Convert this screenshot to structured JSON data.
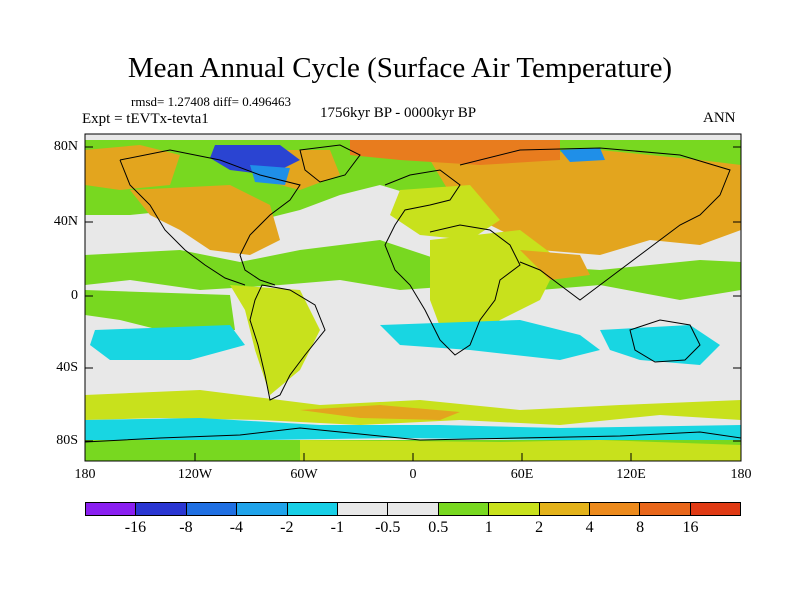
{
  "title": "Mean Annual Cycle (Surface Air Temperature)",
  "stats": "rmsd= 1.27408 diff= 0.496463",
  "experiment": "Expt = tEVTx-tevta1",
  "period": "1756kyr BP - 0000kyr BP",
  "season": "ANN",
  "y_axis_labels": [
    "80N",
    "40N",
    "0",
    "40S",
    "80S"
  ],
  "x_axis_labels": [
    "180",
    "120W",
    "60W",
    "0",
    "60E",
    "120E",
    "180"
  ],
  "colorbar": {
    "colors": [
      "#8a1ff0",
      "#2a36d2",
      "#1f6fe2",
      "#1fa3ea",
      "#18cfe6",
      "#e8e8e8",
      "#e8e8e8",
      "#78d820",
      "#c8e11c",
      "#e3b21a",
      "#ec8a1c",
      "#e8661a",
      "#e03a14"
    ],
    "labels": [
      "-16",
      "-8",
      "-4",
      "-2",
      "-1",
      "-0.5",
      "0.5",
      "1",
      "2",
      "4",
      "8",
      "16"
    ]
  },
  "map_colors": {
    "neutral": "#e8e8e8",
    "light_green": "#b9e34a",
    "green": "#78d820",
    "yellow_green": "#c8e11c",
    "orange": "#e3a51e",
    "dark_orange": "#e87c1e",
    "cyan": "#18d6e2",
    "blue": "#1f8fe8",
    "dark_blue": "#2a44d2",
    "coast": "#000000"
  }
}
